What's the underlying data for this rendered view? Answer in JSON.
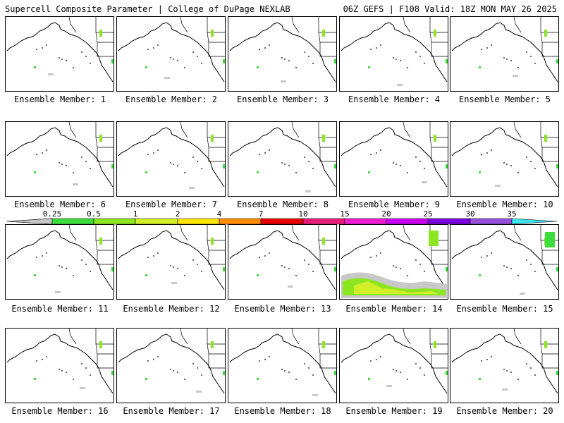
{
  "header": {
    "title": "Supercell Composite Parameter | College of DuPage NEXLAB",
    "run_info": "06Z GEFS | F108 Valid: 18Z MON MAY 26 2025"
  },
  "colorbar": {
    "labels": [
      "0.25",
      "0.5",
      "1",
      "2",
      "4",
      "7",
      "10",
      "15",
      "20",
      "25",
      "30",
      "35"
    ],
    "colors": [
      "#c8c8c8",
      "#3cdc3c",
      "#8ce620",
      "#d2f028",
      "#ffe600",
      "#ff8c00",
      "#e60000",
      "#e61e78",
      "#f01ed2",
      "#c800f0",
      "#7800dc",
      "#9650dc",
      "#3ce6f0"
    ]
  },
  "members": [
    "Ensemble Member: 1",
    "Ensemble Member: 2",
    "Ensemble Member: 3",
    "Ensemble Member: 4",
    "Ensemble Member: 5",
    "Ensemble Member: 6",
    "Ensemble Member: 7",
    "Ensemble Member: 8",
    "Ensemble Member: 9",
    "Ensemble Member: 10",
    "Ensemble Member: 11",
    "Ensemble Member: 12",
    "Ensemble Member: 13",
    "Ensemble Member: 14",
    "Ensemble Member: 15",
    "Ensemble Member: 16",
    "Ensemble Member: 17",
    "Ensemble Member: 18",
    "Ensemble Member: 19",
    "Ensemble Member: 20"
  ]
}
